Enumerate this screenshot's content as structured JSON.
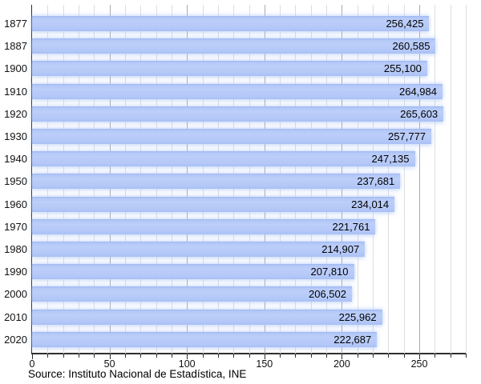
{
  "chart_data": {
    "type": "bar",
    "orientation": "horizontal",
    "title": "",
    "xlabel": "",
    "ylabel": "",
    "categories": [
      "1877",
      "1887",
      "1900",
      "1910",
      "1920",
      "1930",
      "1940",
      "1950",
      "1960",
      "1970",
      "1980",
      "1990",
      "2000",
      "2010",
      "2020"
    ],
    "values": [
      256425,
      260585,
      255100,
      264984,
      265603,
      257777,
      247135,
      237681,
      234014,
      221761,
      214907,
      207810,
      206502,
      225962,
      222687
    ],
    "value_labels": [
      "256,425",
      "260,585",
      "255,100",
      "264,984",
      "265,603",
      "257,777",
      "247,135",
      "237,681",
      "234,014",
      "221,761",
      "214,907",
      "207,810",
      "206,502",
      "225,962",
      "222,687"
    ],
    "x_axis": {
      "min": 0,
      "max": 280,
      "major_tick_step": 50,
      "minor_tick_step": 10,
      "tick_labels": [
        "0",
        "50",
        "100",
        "150",
        "200",
        "250"
      ],
      "unit_divisor": 1000
    },
    "grid": "on",
    "legend": "none",
    "source": "Source: Instituto Nacional de Estadística, INE",
    "colors": {
      "bar_fill": "#b4c8f8",
      "bar_fill_top": "#9db7ef",
      "bar_fill_light": "#bccef9",
      "bar_fill_bottom": "#a9c0f4",
      "gridline_minor": "#dedede",
      "gridline_major": "#ababab",
      "axis": "#2f2f2f",
      "text": "#000000"
    }
  }
}
